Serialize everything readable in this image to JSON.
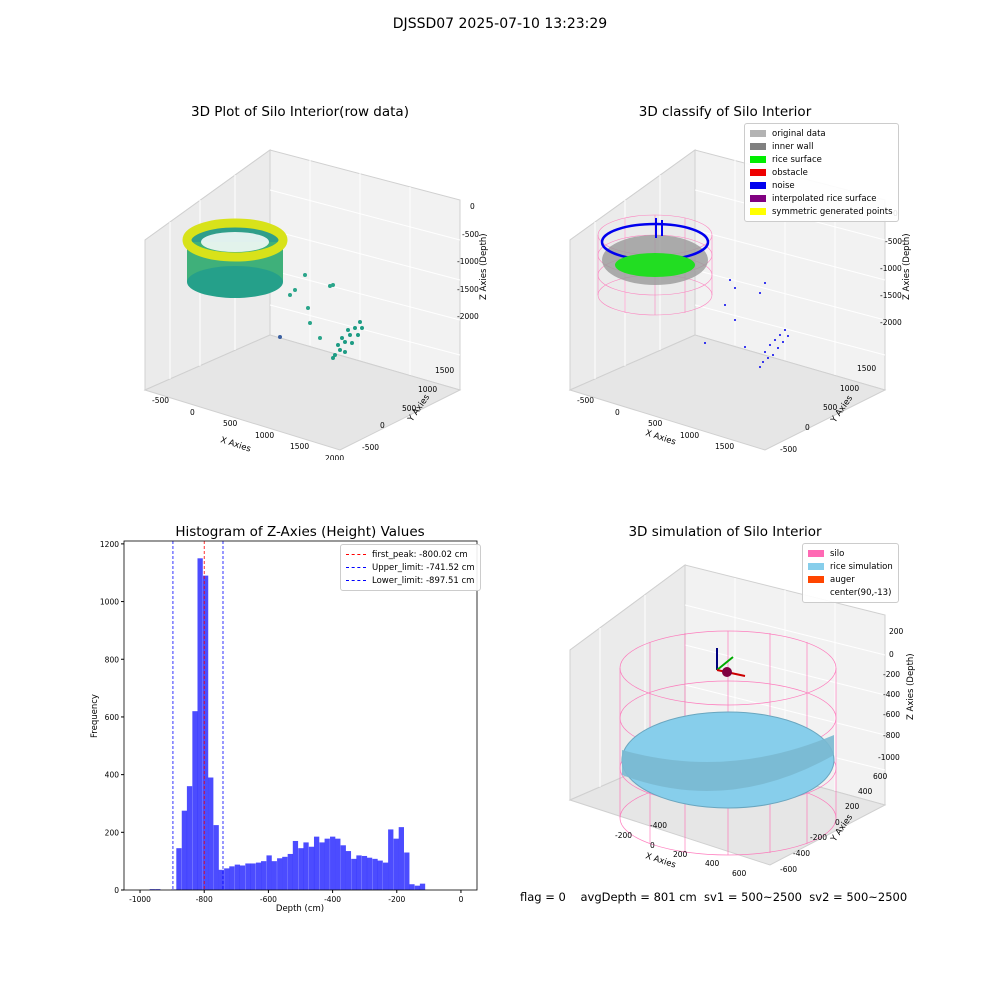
{
  "suptitle": "DJSSD07 2025-07-10 13:23:29",
  "panels": {
    "raw": {
      "title": "3D Plot of Silo Interior(row data)",
      "xlabel": "X Axies",
      "ylabel": "Y Axies",
      "zlabel": "Z Axies (Depth)",
      "xticks": [
        "-500",
        "0",
        "500",
        "1000",
        "1500",
        "2000"
      ],
      "yticks": [
        "-500",
        "0",
        "500",
        "1000",
        "1500"
      ],
      "zticks": [
        "0",
        "-500",
        "-1000",
        "-1500",
        "-2000"
      ]
    },
    "classify": {
      "title": "3D classify of Silo Interior",
      "xlabel": "X Axies",
      "ylabel": "Y Axies",
      "zlabel": "Z Axies (Depth)",
      "xticks": [
        "-500",
        "0",
        "500",
        "1000",
        "1500"
      ],
      "yticks": [
        "-500",
        "0",
        "500",
        "1000",
        "1500"
      ],
      "zticks": [
        "0",
        "-500",
        "-1000",
        "-1500",
        "-2000"
      ],
      "legend": [
        {
          "label": "original data",
          "color": "#b3b3b3"
        },
        {
          "label": "inner wall",
          "color": "#808080"
        },
        {
          "label": "rice surface",
          "color": "#00ee00"
        },
        {
          "label": "obstacle",
          "color": "#ee0000"
        },
        {
          "label": "noise",
          "color": "#0000ee"
        },
        {
          "label": "interpolated rice surface",
          "color": "#800080"
        },
        {
          "label": "symmetric generated points",
          "color": "#ffff00"
        }
      ]
    },
    "simulation": {
      "title": "3D simulation of Silo Interior",
      "xlabel": "X Axies",
      "ylabel": "Y Axies",
      "zlabel": "Z Axies (Depth)",
      "xticks": [
        "-400",
        "-200",
        "0",
        "200",
        "400",
        "600"
      ],
      "yticks": [
        "-600",
        "-400",
        "-200",
        "0",
        "200",
        "400",
        "600"
      ],
      "zticks": [
        "200",
        "0",
        "-200",
        "-400",
        "-600",
        "-800",
        "-1000"
      ],
      "legend": [
        {
          "label": "silo",
          "color": "#ff69b4"
        },
        {
          "label": "rice simulation",
          "color": "#87ceeb"
        },
        {
          "label": "auger",
          "color": "#ff4500"
        },
        {
          "label": "center(90,-13)",
          "color": ""
        }
      ]
    }
  },
  "chart_data": {
    "type": "bar",
    "title": "Histogram of Z-Axies (Height) Values",
    "xlabel": "Depth (cm)",
    "ylabel": "Frequency",
    "xlim": [
      -1050,
      50
    ],
    "ylim": [
      0,
      1210
    ],
    "xticks": [
      -1000,
      -800,
      -600,
      -400,
      -200,
      0
    ],
    "yticks": [
      0,
      200,
      400,
      600,
      800,
      1000,
      1200
    ],
    "bar_color": "#0000ff",
    "bin_width": 16.5,
    "bins": [
      {
        "x": -970,
        "y": 3
      },
      {
        "x": -953,
        "y": 3
      },
      {
        "x": -903,
        "y": 2
      },
      {
        "x": -887,
        "y": 145
      },
      {
        "x": -870,
        "y": 275
      },
      {
        "x": -854,
        "y": 360
      },
      {
        "x": -837,
        "y": 620
      },
      {
        "x": -821,
        "y": 1150
      },
      {
        "x": -804,
        "y": 1090
      },
      {
        "x": -788,
        "y": 390
      },
      {
        "x": -771,
        "y": 225
      },
      {
        "x": -755,
        "y": 70
      },
      {
        "x": -738,
        "y": 75
      },
      {
        "x": -722,
        "y": 82
      },
      {
        "x": -705,
        "y": 88
      },
      {
        "x": -689,
        "y": 85
      },
      {
        "x": -672,
        "y": 92
      },
      {
        "x": -656,
        "y": 92
      },
      {
        "x": -639,
        "y": 95
      },
      {
        "x": -623,
        "y": 100
      },
      {
        "x": -606,
        "y": 120
      },
      {
        "x": -590,
        "y": 100
      },
      {
        "x": -573,
        "y": 110
      },
      {
        "x": -557,
        "y": 115
      },
      {
        "x": -540,
        "y": 125
      },
      {
        "x": -524,
        "y": 170
      },
      {
        "x": -507,
        "y": 145
      },
      {
        "x": -491,
        "y": 165
      },
      {
        "x": -474,
        "y": 150
      },
      {
        "x": -458,
        "y": 185
      },
      {
        "x": -441,
        "y": 165
      },
      {
        "x": -425,
        "y": 178
      },
      {
        "x": -408,
        "y": 185
      },
      {
        "x": -392,
        "y": 178
      },
      {
        "x": -375,
        "y": 155
      },
      {
        "x": -359,
        "y": 135
      },
      {
        "x": -342,
        "y": 108
      },
      {
        "x": -326,
        "y": 120
      },
      {
        "x": -309,
        "y": 118
      },
      {
        "x": -293,
        "y": 112
      },
      {
        "x": -276,
        "y": 108
      },
      {
        "x": -260,
        "y": 102
      },
      {
        "x": -243,
        "y": 95
      },
      {
        "x": -227,
        "y": 210
      },
      {
        "x": -210,
        "y": 178
      },
      {
        "x": -194,
        "y": 218
      },
      {
        "x": -177,
        "y": 130
      },
      {
        "x": -161,
        "y": 20
      },
      {
        "x": -144,
        "y": 15
      },
      {
        "x": -128,
        "y": 22
      }
    ],
    "vlines": [
      {
        "label": "first_peak: -800.02 cm",
        "x": -800.02,
        "color": "#ff0000"
      },
      {
        "label": "Upper_limit: -741.52 cm",
        "x": -741.52,
        "color": "#0000ff"
      },
      {
        "label": "Lower_limit: -897.51 cm",
        "x": -897.51,
        "color": "#0000ff"
      }
    ],
    "legend_position": "top-right"
  },
  "footer": "flag = 0    avgDepth = 801 cm  sv1 = 500~2500  sv2 = 500~2500"
}
